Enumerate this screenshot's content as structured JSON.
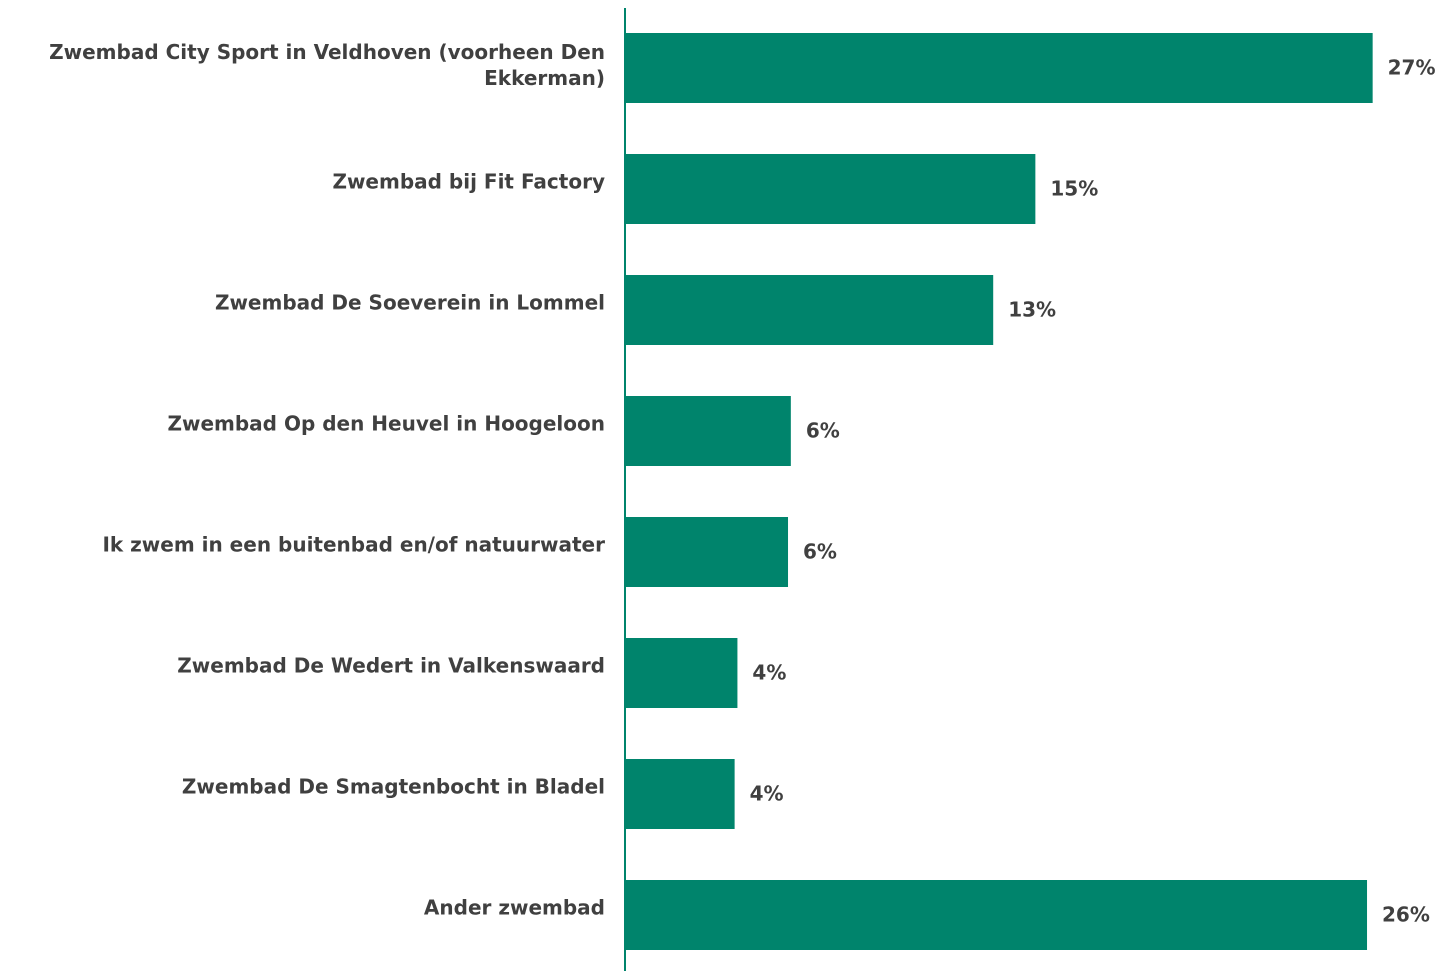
{
  "chart_data": {
    "type": "barh",
    "categories": [
      "Zwembad City Sport in Veldhoven (voorheen Den Ekkerman)",
      "Zwembad bij Fit Factory",
      "Zwembad De Soeverein in Lommel",
      "Zwembad Op den Heuvel in Hoogeloon",
      "Ik zwem in een buitenbad en/of natuurwater",
      "Zwembad De Wedert in Valkenswaard",
      "Zwembad De Smagtenbocht in Bladel",
      "Ander zwembad"
    ],
    "values": [
      26.6,
      14.6,
      13.1,
      5.9,
      5.8,
      4.0,
      3.9,
      26.4
    ],
    "value_labels": [
      "27%",
      "15%",
      "13%",
      "6%",
      "6%",
      "4%",
      "4%",
      "26%"
    ],
    "color": "#00846c",
    "xlim": [
      0,
      28
    ]
  }
}
